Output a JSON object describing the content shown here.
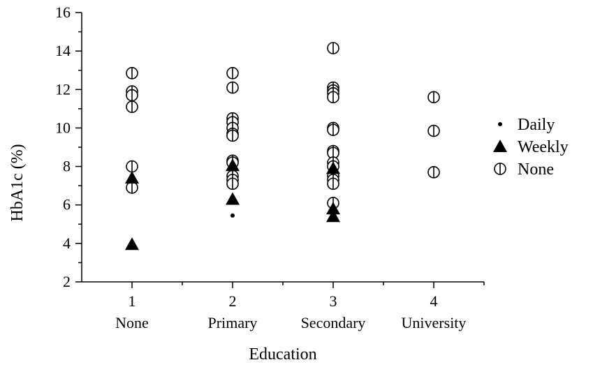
{
  "chart_data": {
    "type": "scatter",
    "title": "",
    "xlabel": "Education",
    "ylabel": "HbA1c (%)",
    "xlim": [
      0.5,
      4.5
    ],
    "ylim": [
      2,
      16
    ],
    "x_ticks": [
      1,
      2,
      3,
      4
    ],
    "x_tick_labels": [
      "1",
      "2",
      "3",
      "4"
    ],
    "x_category_labels": [
      "None",
      "Primary",
      "Secondary",
      "University"
    ],
    "y_ticks": [
      2,
      4,
      6,
      8,
      10,
      12,
      14,
      16
    ],
    "y_tick_labels": [
      "2",
      "4",
      "6",
      "8",
      "10",
      "12",
      "14",
      "16"
    ],
    "grid": false,
    "legend_position": "right",
    "series": [
      {
        "name": "Daily",
        "marker": "dot",
        "color": "#000000",
        "points": [
          [
            2,
            5.45
          ]
        ]
      },
      {
        "name": "Weekly",
        "marker": "filled-triangle",
        "color": "#000000",
        "points": [
          [
            1,
            7.4
          ],
          [
            1,
            3.95
          ],
          [
            2,
            8.05
          ],
          [
            2,
            6.3
          ],
          [
            3,
            7.9
          ],
          [
            3,
            5.8
          ],
          [
            3,
            5.4
          ]
        ]
      },
      {
        "name": "None",
        "marker": "open-circle-with-bar",
        "color": "#000000",
        "points": [
          [
            1,
            12.85
          ],
          [
            1,
            11.9
          ],
          [
            1,
            11.7
          ],
          [
            1,
            11.1
          ],
          [
            1,
            8.0
          ],
          [
            1,
            6.9
          ],
          [
            2,
            12.85
          ],
          [
            2,
            12.1
          ],
          [
            2,
            10.5
          ],
          [
            2,
            10.3
          ],
          [
            2,
            10.0
          ],
          [
            2,
            9.7
          ],
          [
            2,
            9.6
          ],
          [
            2,
            8.3
          ],
          [
            2,
            8.2
          ],
          [
            2,
            7.5
          ],
          [
            2,
            7.3
          ],
          [
            2,
            7.1
          ],
          [
            3,
            14.15
          ],
          [
            3,
            12.1
          ],
          [
            3,
            11.95
          ],
          [
            3,
            11.8
          ],
          [
            3,
            11.6
          ],
          [
            3,
            10.0
          ],
          [
            3,
            9.9
          ],
          [
            3,
            8.8
          ],
          [
            3,
            8.7
          ],
          [
            3,
            8.2
          ],
          [
            3,
            8.0
          ],
          [
            3,
            7.5
          ],
          [
            3,
            7.3
          ],
          [
            3,
            7.1
          ],
          [
            3,
            6.1
          ],
          [
            4,
            11.6
          ],
          [
            4,
            9.85
          ],
          [
            4,
            7.7
          ]
        ]
      }
    ]
  }
}
